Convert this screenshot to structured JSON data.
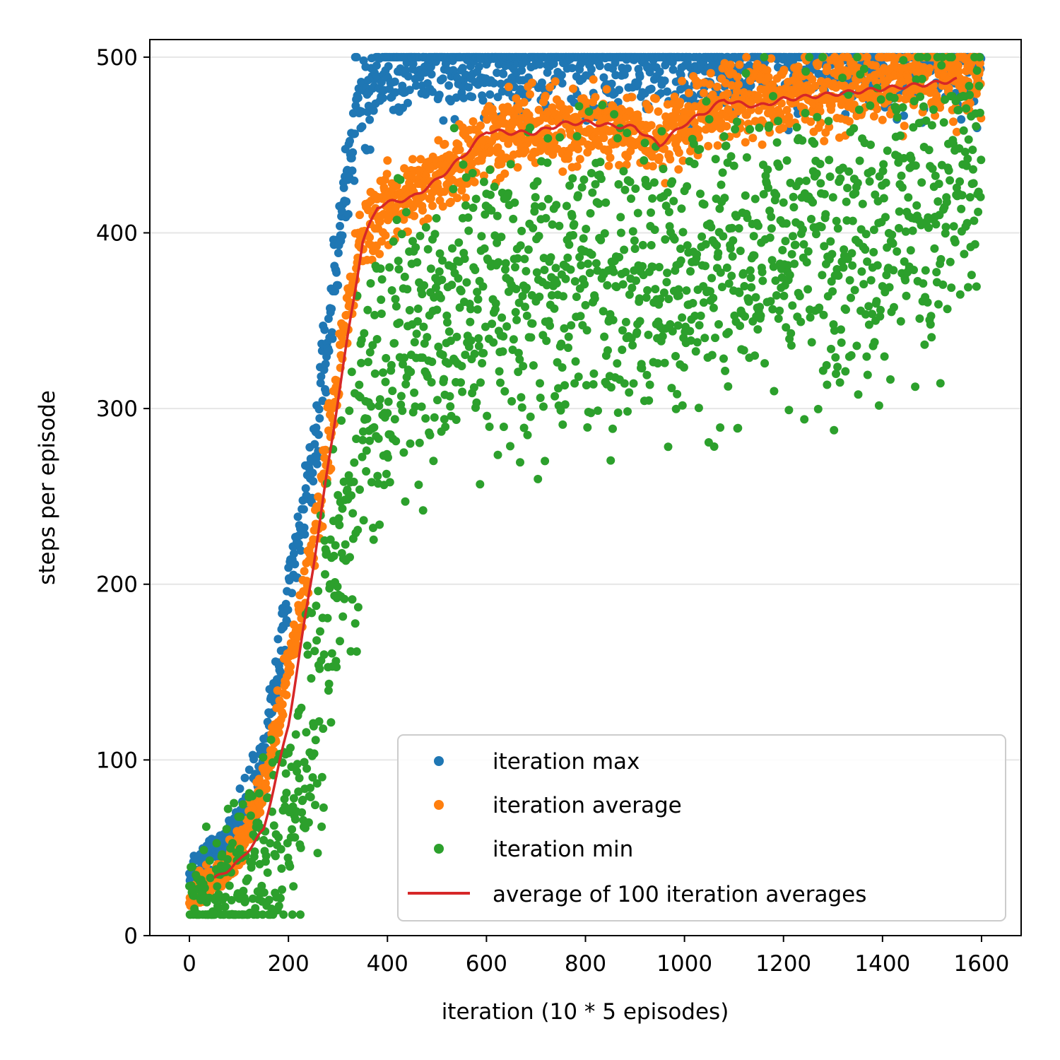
{
  "chart_data": {
    "type": "scatter",
    "title": "",
    "xlabel": "iteration (10 * 5 episodes)",
    "ylabel": "steps per episode",
    "xlim": [
      -80,
      1680
    ],
    "ylim": [
      0,
      510
    ],
    "x_ticks": [
      0,
      200,
      400,
      600,
      800,
      1000,
      1200,
      1400,
      1600
    ],
    "y_ticks": [
      0,
      100,
      200,
      300,
      400,
      500
    ],
    "grid": "horizontal",
    "legend_position": "lower-right",
    "iterations": 1600,
    "series": [
      {
        "name": "iteration max",
        "kind": "points",
        "color": "#1f77b4",
        "keypoints": [
          [
            0,
            30
          ],
          [
            50,
            45
          ],
          [
            100,
            65
          ],
          [
            150,
            100
          ],
          [
            200,
            190
          ],
          [
            250,
            270
          ],
          [
            300,
            390
          ],
          [
            320,
            440
          ],
          [
            340,
            470
          ],
          [
            380,
            490
          ],
          [
            420,
            497
          ],
          [
            500,
            499
          ],
          [
            1600,
            500
          ]
        ],
        "spread": 30,
        "cap": 500
      },
      {
        "name": "iteration average",
        "kind": "points",
        "color": "#ff7f0e",
        "keypoints": [
          [
            0,
            22
          ],
          [
            50,
            33
          ],
          [
            100,
            48
          ],
          [
            150,
            85
          ],
          [
            200,
            150
          ],
          [
            250,
            220
          ],
          [
            300,
            320
          ],
          [
            350,
            400
          ],
          [
            400,
            415
          ],
          [
            500,
            430
          ],
          [
            600,
            455
          ],
          [
            800,
            462
          ],
          [
            950,
            455
          ],
          [
            1080,
            475
          ],
          [
            1200,
            478
          ],
          [
            1400,
            485
          ],
          [
            1600,
            490
          ]
        ],
        "spread": 22,
        "cap": 500
      },
      {
        "name": "iteration min",
        "kind": "points",
        "color": "#2ca02c",
        "keypoints": [
          [
            0,
            16
          ],
          [
            50,
            20
          ],
          [
            100,
            28
          ],
          [
            150,
            40
          ],
          [
            200,
            70
          ],
          [
            250,
            120
          ],
          [
            300,
            200
          ],
          [
            350,
            300
          ],
          [
            400,
            330
          ],
          [
            500,
            350
          ],
          [
            600,
            365
          ],
          [
            800,
            375
          ],
          [
            1000,
            380
          ],
          [
            1200,
            395
          ],
          [
            1400,
            410
          ],
          [
            1600,
            435
          ]
        ],
        "spread": 90,
        "cap": 500
      },
      {
        "name": "average of 100 iteration averages",
        "kind": "line",
        "color": "#d62728",
        "x_range": [
          50,
          1550
        ],
        "keypoints": [
          [
            50,
            32
          ],
          [
            100,
            42
          ],
          [
            150,
            60
          ],
          [
            200,
            120
          ],
          [
            250,
            210
          ],
          [
            300,
            305
          ],
          [
            350,
            395
          ],
          [
            380,
            415
          ],
          [
            400,
            417
          ],
          [
            450,
            420
          ],
          [
            500,
            430
          ],
          [
            550,
            443
          ],
          [
            600,
            458
          ],
          [
            650,
            457
          ],
          [
            700,
            457
          ],
          [
            750,
            462
          ],
          [
            800,
            463
          ],
          [
            850,
            461
          ],
          [
            900,
            460
          ],
          [
            950,
            450
          ],
          [
            1000,
            462
          ],
          [
            1050,
            470
          ],
          [
            1080,
            476
          ],
          [
            1100,
            474
          ],
          [
            1150,
            472
          ],
          [
            1200,
            476
          ],
          [
            1300,
            479
          ],
          [
            1400,
            482
          ],
          [
            1500,
            485
          ],
          [
            1550,
            487
          ]
        ]
      }
    ]
  }
}
